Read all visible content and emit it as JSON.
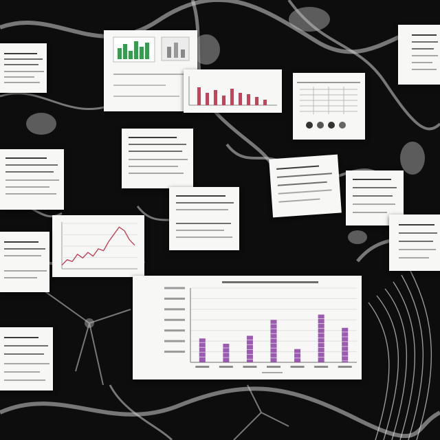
{
  "scene": {
    "background_color": "#0d0d0d",
    "texture_color": "#cfcfcf",
    "paper_color": "#f7f7f5",
    "accent_purple": "#8a3fa3",
    "accent_red": "#c2435a",
    "accent_green": "#2fa14a"
  },
  "chart_data": {
    "type": "bar",
    "categories": [
      "1",
      "2",
      "3",
      "4",
      "5",
      "6",
      "7"
    ],
    "values": [
      9,
      7,
      10,
      16,
      5,
      18,
      13
    ],
    "ylim": [
      0,
      28
    ],
    "grid": true
  },
  "line_chart": {
    "type": "line",
    "x": [
      0,
      1,
      2,
      3,
      4,
      5,
      6,
      7,
      8,
      9,
      10,
      11,
      12,
      13,
      14
    ],
    "values": [
      2,
      5,
      4,
      8,
      6,
      9,
      7,
      11,
      10,
      15,
      19,
      23,
      21,
      16,
      13
    ],
    "ylim": [
      0,
      25
    ],
    "color": "#c2435a"
  }
}
